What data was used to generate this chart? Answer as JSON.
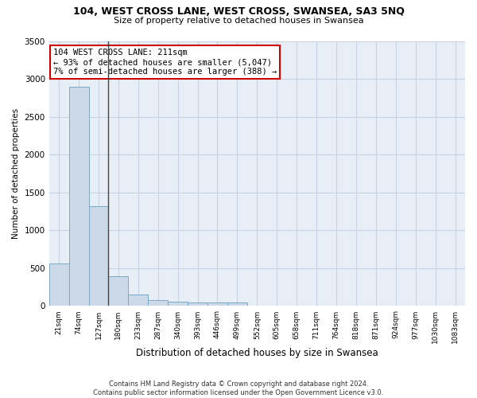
{
  "title": "104, WEST CROSS LANE, WEST CROSS, SWANSEA, SA3 5NQ",
  "subtitle": "Size of property relative to detached houses in Swansea",
  "xlabel": "Distribution of detached houses by size in Swansea",
  "ylabel": "Number of detached properties",
  "footer_line1": "Contains HM Land Registry data © Crown copyright and database right 2024.",
  "footer_line2": "Contains public sector information licensed under the Open Government Licence v3.0.",
  "annotation_line1": "104 WEST CROSS LANE: 211sqm",
  "annotation_line2": "← 93% of detached houses are smaller (5,047)",
  "annotation_line3": "7% of semi-detached houses are larger (388) →",
  "bar_color": "#ccd9e8",
  "bar_edge_color": "#7aaac8",
  "annotation_box_color": "#ffffff",
  "annotation_box_edge": "#cc0000",
  "grid_color": "#c8d4e4",
  "bg_color": "#e8eef6",
  "categories": [
    "21sqm",
    "74sqm",
    "127sqm",
    "180sqm",
    "233sqm",
    "287sqm",
    "340sqm",
    "393sqm",
    "446sqm",
    "499sqm",
    "552sqm",
    "605sqm",
    "658sqm",
    "711sqm",
    "764sqm",
    "818sqm",
    "871sqm",
    "924sqm",
    "977sqm",
    "1030sqm",
    "1083sqm"
  ],
  "values": [
    560,
    2900,
    1320,
    390,
    155,
    80,
    58,
    52,
    42,
    48,
    0,
    0,
    0,
    0,
    0,
    0,
    0,
    0,
    0,
    0,
    0
  ],
  "vline_x": 2.5,
  "ylim": [
    0,
    3500
  ],
  "yticks": [
    0,
    500,
    1000,
    1500,
    2000,
    2500,
    3000,
    3500
  ]
}
